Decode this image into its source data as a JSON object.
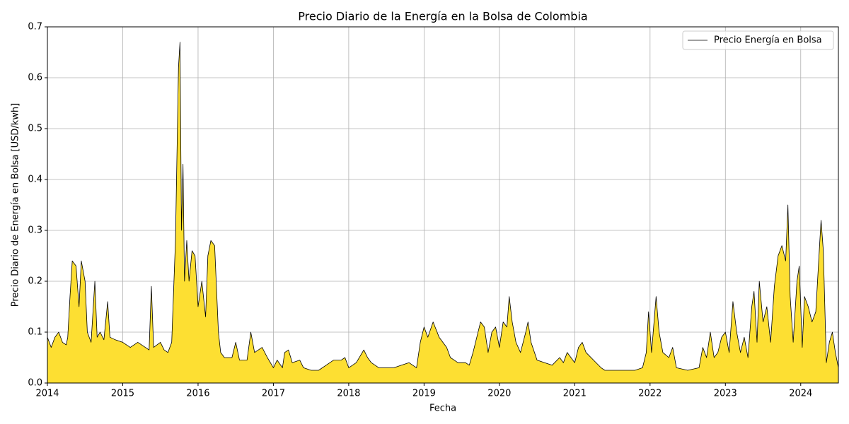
{
  "chart_data": {
    "type": "area",
    "title": "Precio Diario de la Energía en la Bolsa de Colombia",
    "x_label": "Fecha",
    "y_label": "Precio Diario de Energía en Bolsa [USD/kwh]",
    "x": [
      2014,
      2014.05,
      2014.1,
      2014.15,
      2014.2,
      2014.25,
      2014.27,
      2014.3,
      2014.33,
      2014.38,
      2014.42,
      2014.45,
      2014.5,
      2014.53,
      2014.58,
      2014.63,
      2014.66,
      2014.7,
      2014.75,
      2014.8,
      2014.83,
      2014.9,
      2015,
      2015.1,
      2015.2,
      2015.3,
      2015.35,
      2015.38,
      2015.41,
      2015.5,
      2015.55,
      2015.6,
      2015.65,
      2015.7,
      2015.74,
      2015.76,
      2015.78,
      2015.8,
      2015.82,
      2015.85,
      2015.88,
      2015.92,
      2015.96,
      2016,
      2016.05,
      2016.1,
      2016.13,
      2016.17,
      2016.22,
      2016.27,
      2016.3,
      2016.35,
      2016.45,
      2016.5,
      2016.55,
      2016.65,
      2016.7,
      2016.75,
      2016.85,
      2016.92,
      2017,
      2017.05,
      2017.12,
      2017.15,
      2017.2,
      2017.25,
      2017.35,
      2017.4,
      2017.5,
      2017.6,
      2017.7,
      2017.8,
      2017.9,
      2017.95,
      2018,
      2018.1,
      2018.2,
      2018.25,
      2018.3,
      2018.4,
      2018.5,
      2018.6,
      2018.7,
      2018.8,
      2018.9,
      2018.95,
      2019,
      2019.05,
      2019.12,
      2019.2,
      2019.3,
      2019.35,
      2019.45,
      2019.55,
      2019.6,
      2019.65,
      2019.7,
      2019.75,
      2019.8,
      2019.85,
      2019.9,
      2019.95,
      2020,
      2020.05,
      2020.1,
      2020.13,
      2020.17,
      2020.22,
      2020.28,
      2020.35,
      2020.38,
      2020.42,
      2020.5,
      2020.6,
      2020.7,
      2020.8,
      2020.85,
      2020.9,
      2021,
      2021.05,
      2021.1,
      2021.15,
      2021.25,
      2021.35,
      2021.4,
      2021.6,
      2021.8,
      2021.9,
      2021.95,
      2021.98,
      2022.02,
      2022.08,
      2022.12,
      2022.17,
      2022.25,
      2022.3,
      2022.35,
      2022.5,
      2022.65,
      2022.7,
      2022.75,
      2022.8,
      2022.85,
      2022.9,
      2022.95,
      2023,
      2023.05,
      2023.1,
      2023.15,
      2023.2,
      2023.25,
      2023.3,
      2023.35,
      2023.38,
      2023.42,
      2023.45,
      2023.5,
      2023.55,
      2023.6,
      2023.65,
      2023.7,
      2023.75,
      2023.8,
      2023.83,
      2023.86,
      2023.9,
      2023.95,
      2023.98,
      2024.02,
      2024.05,
      2024.1,
      2024.15,
      2024.2,
      2024.25,
      2024.27,
      2024.3,
      2024.34,
      2024.38,
      2024.42,
      2024.46,
      2024.5
    ],
    "series": [
      {
        "name": "Precio Energía en Bolsa",
        "color": "#000000",
        "fill_color": "#fddf32",
        "values": [
          0.09,
          0.07,
          0.09,
          0.1,
          0.08,
          0.075,
          0.09,
          0.17,
          0.24,
          0.23,
          0.15,
          0.24,
          0.2,
          0.1,
          0.08,
          0.2,
          0.09,
          0.1,
          0.085,
          0.16,
          0.09,
          0.085,
          0.08,
          0.07,
          0.08,
          0.07,
          0.065,
          0.19,
          0.07,
          0.08,
          0.065,
          0.06,
          0.08,
          0.28,
          0.62,
          0.67,
          0.3,
          0.43,
          0.2,
          0.28,
          0.2,
          0.26,
          0.25,
          0.15,
          0.2,
          0.13,
          0.25,
          0.28,
          0.27,
          0.1,
          0.06,
          0.05,
          0.05,
          0.08,
          0.045,
          0.045,
          0.1,
          0.06,
          0.07,
          0.05,
          0.03,
          0.045,
          0.03,
          0.06,
          0.065,
          0.04,
          0.045,
          0.03,
          0.025,
          0.025,
          0.035,
          0.045,
          0.045,
          0.05,
          0.03,
          0.04,
          0.065,
          0.05,
          0.04,
          0.03,
          0.03,
          0.03,
          0.035,
          0.04,
          0.03,
          0.08,
          0.11,
          0.09,
          0.12,
          0.09,
          0.07,
          0.05,
          0.04,
          0.04,
          0.035,
          0.06,
          0.09,
          0.12,
          0.11,
          0.06,
          0.1,
          0.11,
          0.07,
          0.12,
          0.11,
          0.17,
          0.12,
          0.08,
          0.06,
          0.1,
          0.12,
          0.08,
          0.045,
          0.04,
          0.035,
          0.05,
          0.04,
          0.06,
          0.04,
          0.07,
          0.08,
          0.06,
          0.045,
          0.03,
          0.025,
          0.025,
          0.025,
          0.03,
          0.06,
          0.14,
          0.06,
          0.17,
          0.1,
          0.06,
          0.05,
          0.07,
          0.03,
          0.025,
          0.03,
          0.07,
          0.05,
          0.1,
          0.05,
          0.06,
          0.09,
          0.1,
          0.06,
          0.16,
          0.1,
          0.06,
          0.09,
          0.05,
          0.15,
          0.18,
          0.08,
          0.2,
          0.12,
          0.15,
          0.08,
          0.19,
          0.25,
          0.27,
          0.24,
          0.35,
          0.17,
          0.08,
          0.2,
          0.23,
          0.07,
          0.17,
          0.15,
          0.12,
          0.14,
          0.27,
          0.32,
          0.26,
          0.04,
          0.08,
          0.1,
          0.06,
          0.03
        ]
      }
    ],
    "xlim": [
      2014,
      2024.5
    ],
    "xticks": [
      2014,
      2015,
      2016,
      2017,
      2018,
      2019,
      2020,
      2021,
      2022,
      2023,
      2024
    ],
    "ylim": [
      0,
      0.7
    ],
    "yticks": [
      {
        "value": 0,
        "label": "0.0"
      },
      0.1,
      0.2,
      0.3,
      0.4,
      0.5,
      0.6,
      0.7
    ],
    "grid": true,
    "legend": "upper right"
  }
}
